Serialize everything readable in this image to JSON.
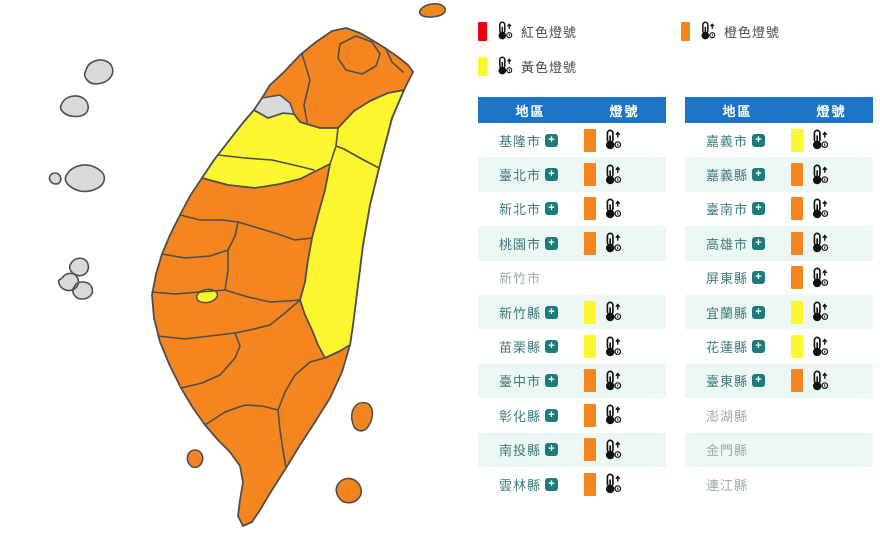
{
  "legend": {
    "items": [
      {
        "id": "red",
        "label": "紅色燈號",
        "status": "red"
      },
      {
        "id": "yellow",
        "label": "黃色燈號",
        "status": "yellow"
      },
      {
        "id": "orange",
        "label": "橙色燈號",
        "status": "orange"
      }
    ]
  },
  "ui": {
    "expand_glyph": "+"
  },
  "tables": [
    {
      "headers": {
        "region": "地區",
        "signal": "燈號"
      },
      "rows": [
        {
          "region": "基隆市",
          "expandable": true,
          "signal": "orange"
        },
        {
          "region": "臺北市",
          "expandable": true,
          "signal": "orange"
        },
        {
          "region": "新北市",
          "expandable": true,
          "signal": "orange"
        },
        {
          "region": "桃園市",
          "expandable": true,
          "signal": "orange"
        },
        {
          "region": "新竹市",
          "expandable": false,
          "signal": "none"
        },
        {
          "region": "新竹縣",
          "expandable": true,
          "signal": "yellow"
        },
        {
          "region": "苗栗縣",
          "expandable": true,
          "signal": "yellow"
        },
        {
          "region": "臺中市",
          "expandable": true,
          "signal": "orange"
        },
        {
          "region": "彰化縣",
          "expandable": true,
          "signal": "orange"
        },
        {
          "region": "南投縣",
          "expandable": true,
          "signal": "orange"
        },
        {
          "region": "雲林縣",
          "expandable": true,
          "signal": "orange"
        }
      ]
    },
    {
      "headers": {
        "region": "地區",
        "signal": "燈號"
      },
      "rows": [
        {
          "region": "嘉義市",
          "expandable": true,
          "signal": "yellow"
        },
        {
          "region": "嘉義縣",
          "expandable": true,
          "signal": "orange"
        },
        {
          "region": "臺南市",
          "expandable": true,
          "signal": "orange"
        },
        {
          "region": "高雄市",
          "expandable": true,
          "signal": "orange"
        },
        {
          "region": "屏東縣",
          "expandable": true,
          "signal": "orange"
        },
        {
          "region": "宜蘭縣",
          "expandable": true,
          "signal": "yellow"
        },
        {
          "region": "花蓮縣",
          "expandable": true,
          "signal": "yellow"
        },
        {
          "region": "臺東縣",
          "expandable": true,
          "signal": "orange"
        },
        {
          "region": "澎湖縣",
          "expandable": false,
          "signal": "none"
        },
        {
          "region": "金門縣",
          "expandable": false,
          "signal": "none"
        },
        {
          "region": "連江縣",
          "expandable": false,
          "signal": "none"
        }
      ]
    }
  ],
  "map": {
    "status_colors": {
      "red": "#e60012",
      "orange": "#f5861f",
      "yellow": "#fcf62f",
      "gray": "#d9d9d9",
      "none": "#d9d9d9"
    },
    "border_color": "#4e4e4e",
    "regions": [
      {
        "name": "基隆市",
        "status": "orange"
      },
      {
        "name": "臺北市",
        "status": "orange"
      },
      {
        "name": "新北市",
        "status": "orange"
      },
      {
        "name": "桃園市",
        "status": "orange"
      },
      {
        "name": "新竹市",
        "status": "gray"
      },
      {
        "name": "新竹縣",
        "status": "yellow"
      },
      {
        "name": "苗栗縣",
        "status": "yellow"
      },
      {
        "name": "臺中市",
        "status": "orange"
      },
      {
        "name": "彰化縣",
        "status": "orange"
      },
      {
        "name": "南投縣",
        "status": "orange"
      },
      {
        "name": "雲林縣",
        "status": "orange"
      },
      {
        "name": "嘉義市",
        "status": "yellow"
      },
      {
        "name": "嘉義縣",
        "status": "orange"
      },
      {
        "name": "臺南市",
        "status": "orange"
      },
      {
        "name": "高雄市",
        "status": "orange"
      },
      {
        "name": "屏東縣",
        "status": "orange"
      },
      {
        "name": "宜蘭縣",
        "status": "yellow"
      },
      {
        "name": "花蓮縣",
        "status": "yellow"
      },
      {
        "name": "臺東縣",
        "status": "orange"
      },
      {
        "name": "澎湖縣",
        "status": "gray"
      },
      {
        "name": "金門縣",
        "status": "gray"
      },
      {
        "name": "連江縣",
        "status": "gray"
      }
    ]
  }
}
